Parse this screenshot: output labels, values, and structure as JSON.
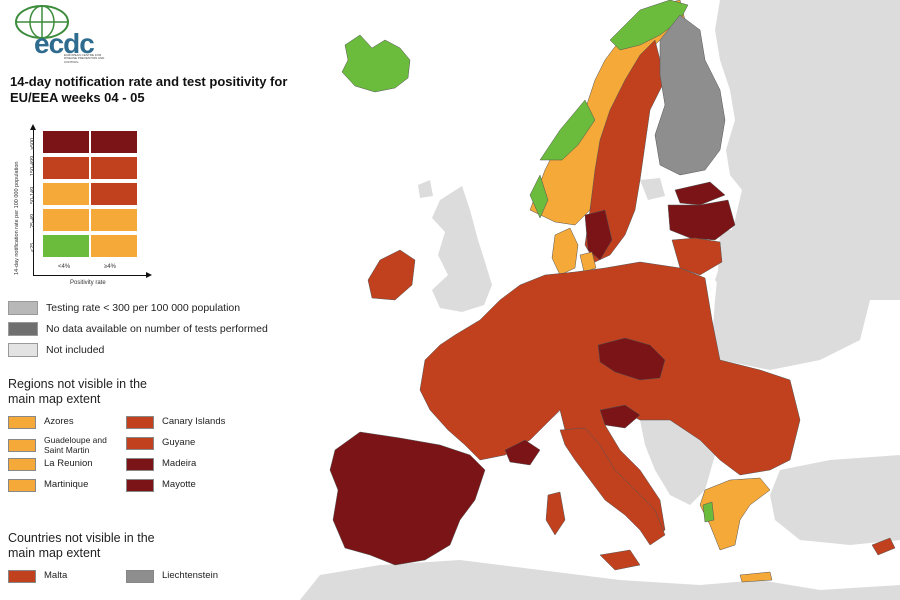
{
  "logo": {
    "text": "ecdc",
    "sub": "EUROPEAN CENTRE FOR DISEASE PREVENTION AND CONTROL"
  },
  "title": "14-day notification rate and test positivity for EU/EEA weeks 04 - 05",
  "matrix": {
    "y_axis_label": "14-day notification rate per 100 000 population",
    "x_axis_label": "Positivity rate",
    "rows": [
      "≥500",
      "150-499",
      "50-149",
      "25-49",
      "<25"
    ],
    "cols": [
      "<4%",
      "≥4%"
    ]
  },
  "colors": {
    "dark_red": "#7b1416",
    "red": "#c1401e",
    "orange": "#f4a938",
    "green": "#6bbb3d",
    "grey": "#9a9a9a",
    "dark_grey": "#6f6f6f",
    "light_grey": "#e3e3e3",
    "sea": "#ffffff",
    "non_eu": "#dcdcdc"
  },
  "legend": {
    "testing_rate": "Testing rate < 300 per 100 000 population",
    "no_data": "No data available on number of tests performed",
    "not_included": "Not included"
  },
  "regions": {
    "title": "Regions not visible in the main map extent",
    "left": [
      "Azores",
      "Guadeloupe and Saint Martin",
      "La Reunion",
      "Martinique"
    ],
    "right": [
      "Canary Islands",
      "Guyane",
      "Madeira",
      "Mayotte"
    ]
  },
  "countries": {
    "title": "Countries not visible in the main map extent",
    "items": [
      "Malta",
      "Liechtenstein"
    ]
  }
}
